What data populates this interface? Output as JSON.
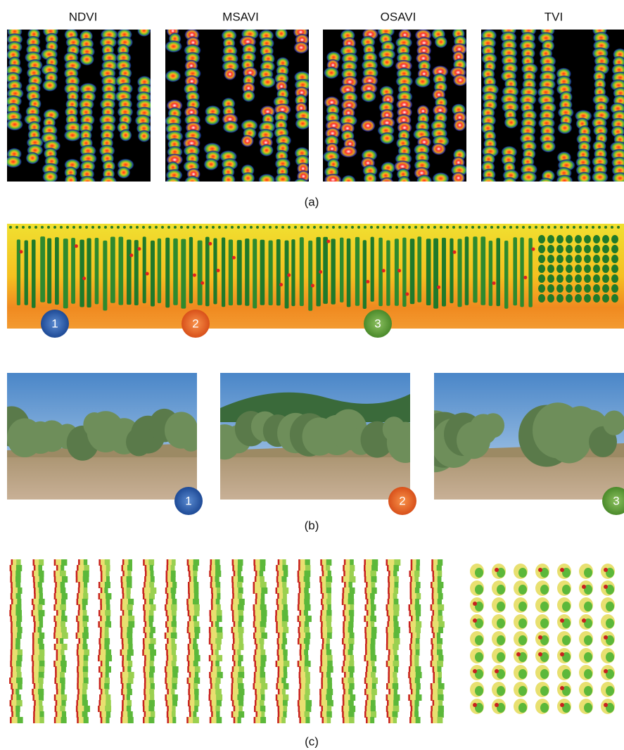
{
  "panel_a": {
    "titles": [
      "NDVI",
      "MSAVI",
      "OSAVI",
      "TVI"
    ],
    "caption": "(a)"
  },
  "panel_b": {
    "map_markers": [
      "1",
      "2",
      "3"
    ],
    "photo_markers": [
      "1",
      "2",
      "3"
    ],
    "caption": "(b)"
  },
  "panel_c": {
    "caption": "(c)"
  }
}
